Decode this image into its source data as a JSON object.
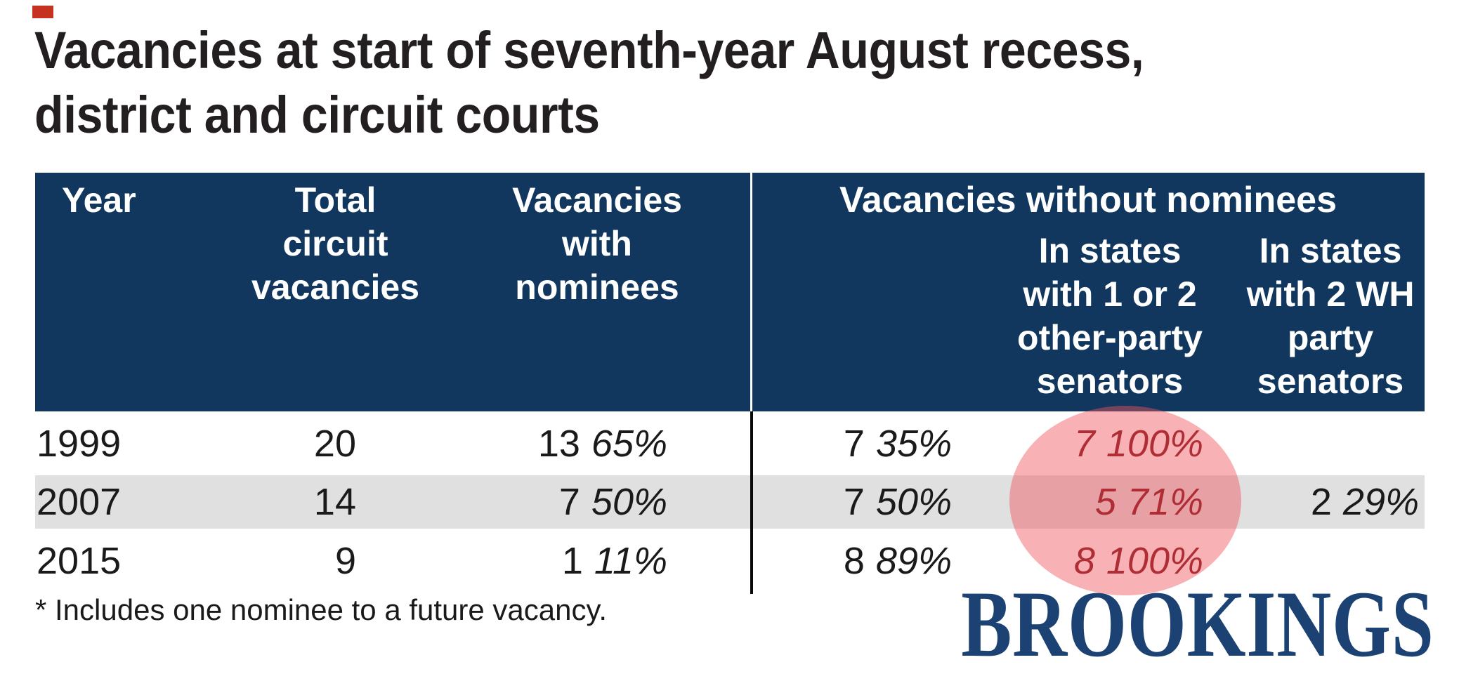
{
  "marker": {
    "color": "#c5321f"
  },
  "title": {
    "line1": "Vacancies at start of seventh-year August recess,",
    "line2": "district and circuit courts"
  },
  "table": {
    "headers": {
      "year": "Year",
      "total": "Total\ncircuit\nvacancies",
      "with_nominees": "Vacancies\nwith\nnominees",
      "without_group": "Vacancies without nominees",
      "other_party": "In states\nwith 1 or 2\nother-party\nsenators",
      "wh_party": "In states\nwith 2 WH\nparty\nsenators"
    },
    "rows": [
      {
        "year": "1999",
        "total": "20",
        "with_count": "13",
        "with_pct": "65%",
        "without_count": "7",
        "without_pct": "35%",
        "other_count": "7",
        "other_pct": "100%",
        "wh_count": "",
        "wh_pct": ""
      },
      {
        "year": "2007",
        "total": "14",
        "with_count": "7",
        "with_pct": "50%",
        "without_count": "7",
        "without_pct": "50%",
        "other_count": "5",
        "other_pct": "71%",
        "wh_count": "2",
        "wh_pct": "29%"
      },
      {
        "year": "2015",
        "total": "9",
        "with_count": "1",
        "with_pct": "11%",
        "without_count": "8",
        "without_pct": "89%",
        "other_count": "8",
        "other_pct": "100%",
        "wh_count": "",
        "wh_pct": ""
      }
    ]
  },
  "highlight": {
    "shape": "ellipse",
    "fill": "rgba(240,82,91,0.45)",
    "text_color": "#7a1116",
    "covers": "Vacancies without nominees in states with 1 or 2 other-party senators"
  },
  "footnote": "* Includes one nominee to a future vacancy.",
  "logo": "BROOKINGS",
  "colors": {
    "header_bg": "#11375e",
    "alt_row_bg": "#e0e0e0",
    "title_text": "#231f20",
    "body_text": "#1a1a1a",
    "highlight_text": "#7a1116",
    "logo_text": "#1b4273",
    "marker_red": "#c5321f"
  },
  "chart_data": {
    "type": "table",
    "title": "Vacancies at start of seventh-year August recess, district and circuit courts",
    "columns": [
      "Year",
      "Total circuit vacancies",
      "Vacancies with nominees (n, %)",
      "Vacancies without nominees (n, %)",
      "Without nominees: in states with 1 or 2 other-party senators (n, %)",
      "Without nominees: in states with 2 WH party senators (n, %)"
    ],
    "rows": [
      [
        "1999",
        20,
        "13 (65%)",
        "7 (35%)",
        "7 (100%)",
        null
      ],
      [
        "2007",
        14,
        "7 (50%)",
        "7 (50%)",
        "5 (71%)",
        "2 (29%)"
      ],
      [
        "2015",
        9,
        "1 (11%)",
        "8 (89%)",
        "8 (100%)",
        null
      ]
    ],
    "annotation": "Translucent red ellipse highlights the 'in states with 1 or 2 other-party senators' values (7 100%, 5 71%, 8 100%) in dark red italic",
    "footnote": "* Includes one nominee to a future vacancy.",
    "legend_position": "none",
    "grid": false
  }
}
